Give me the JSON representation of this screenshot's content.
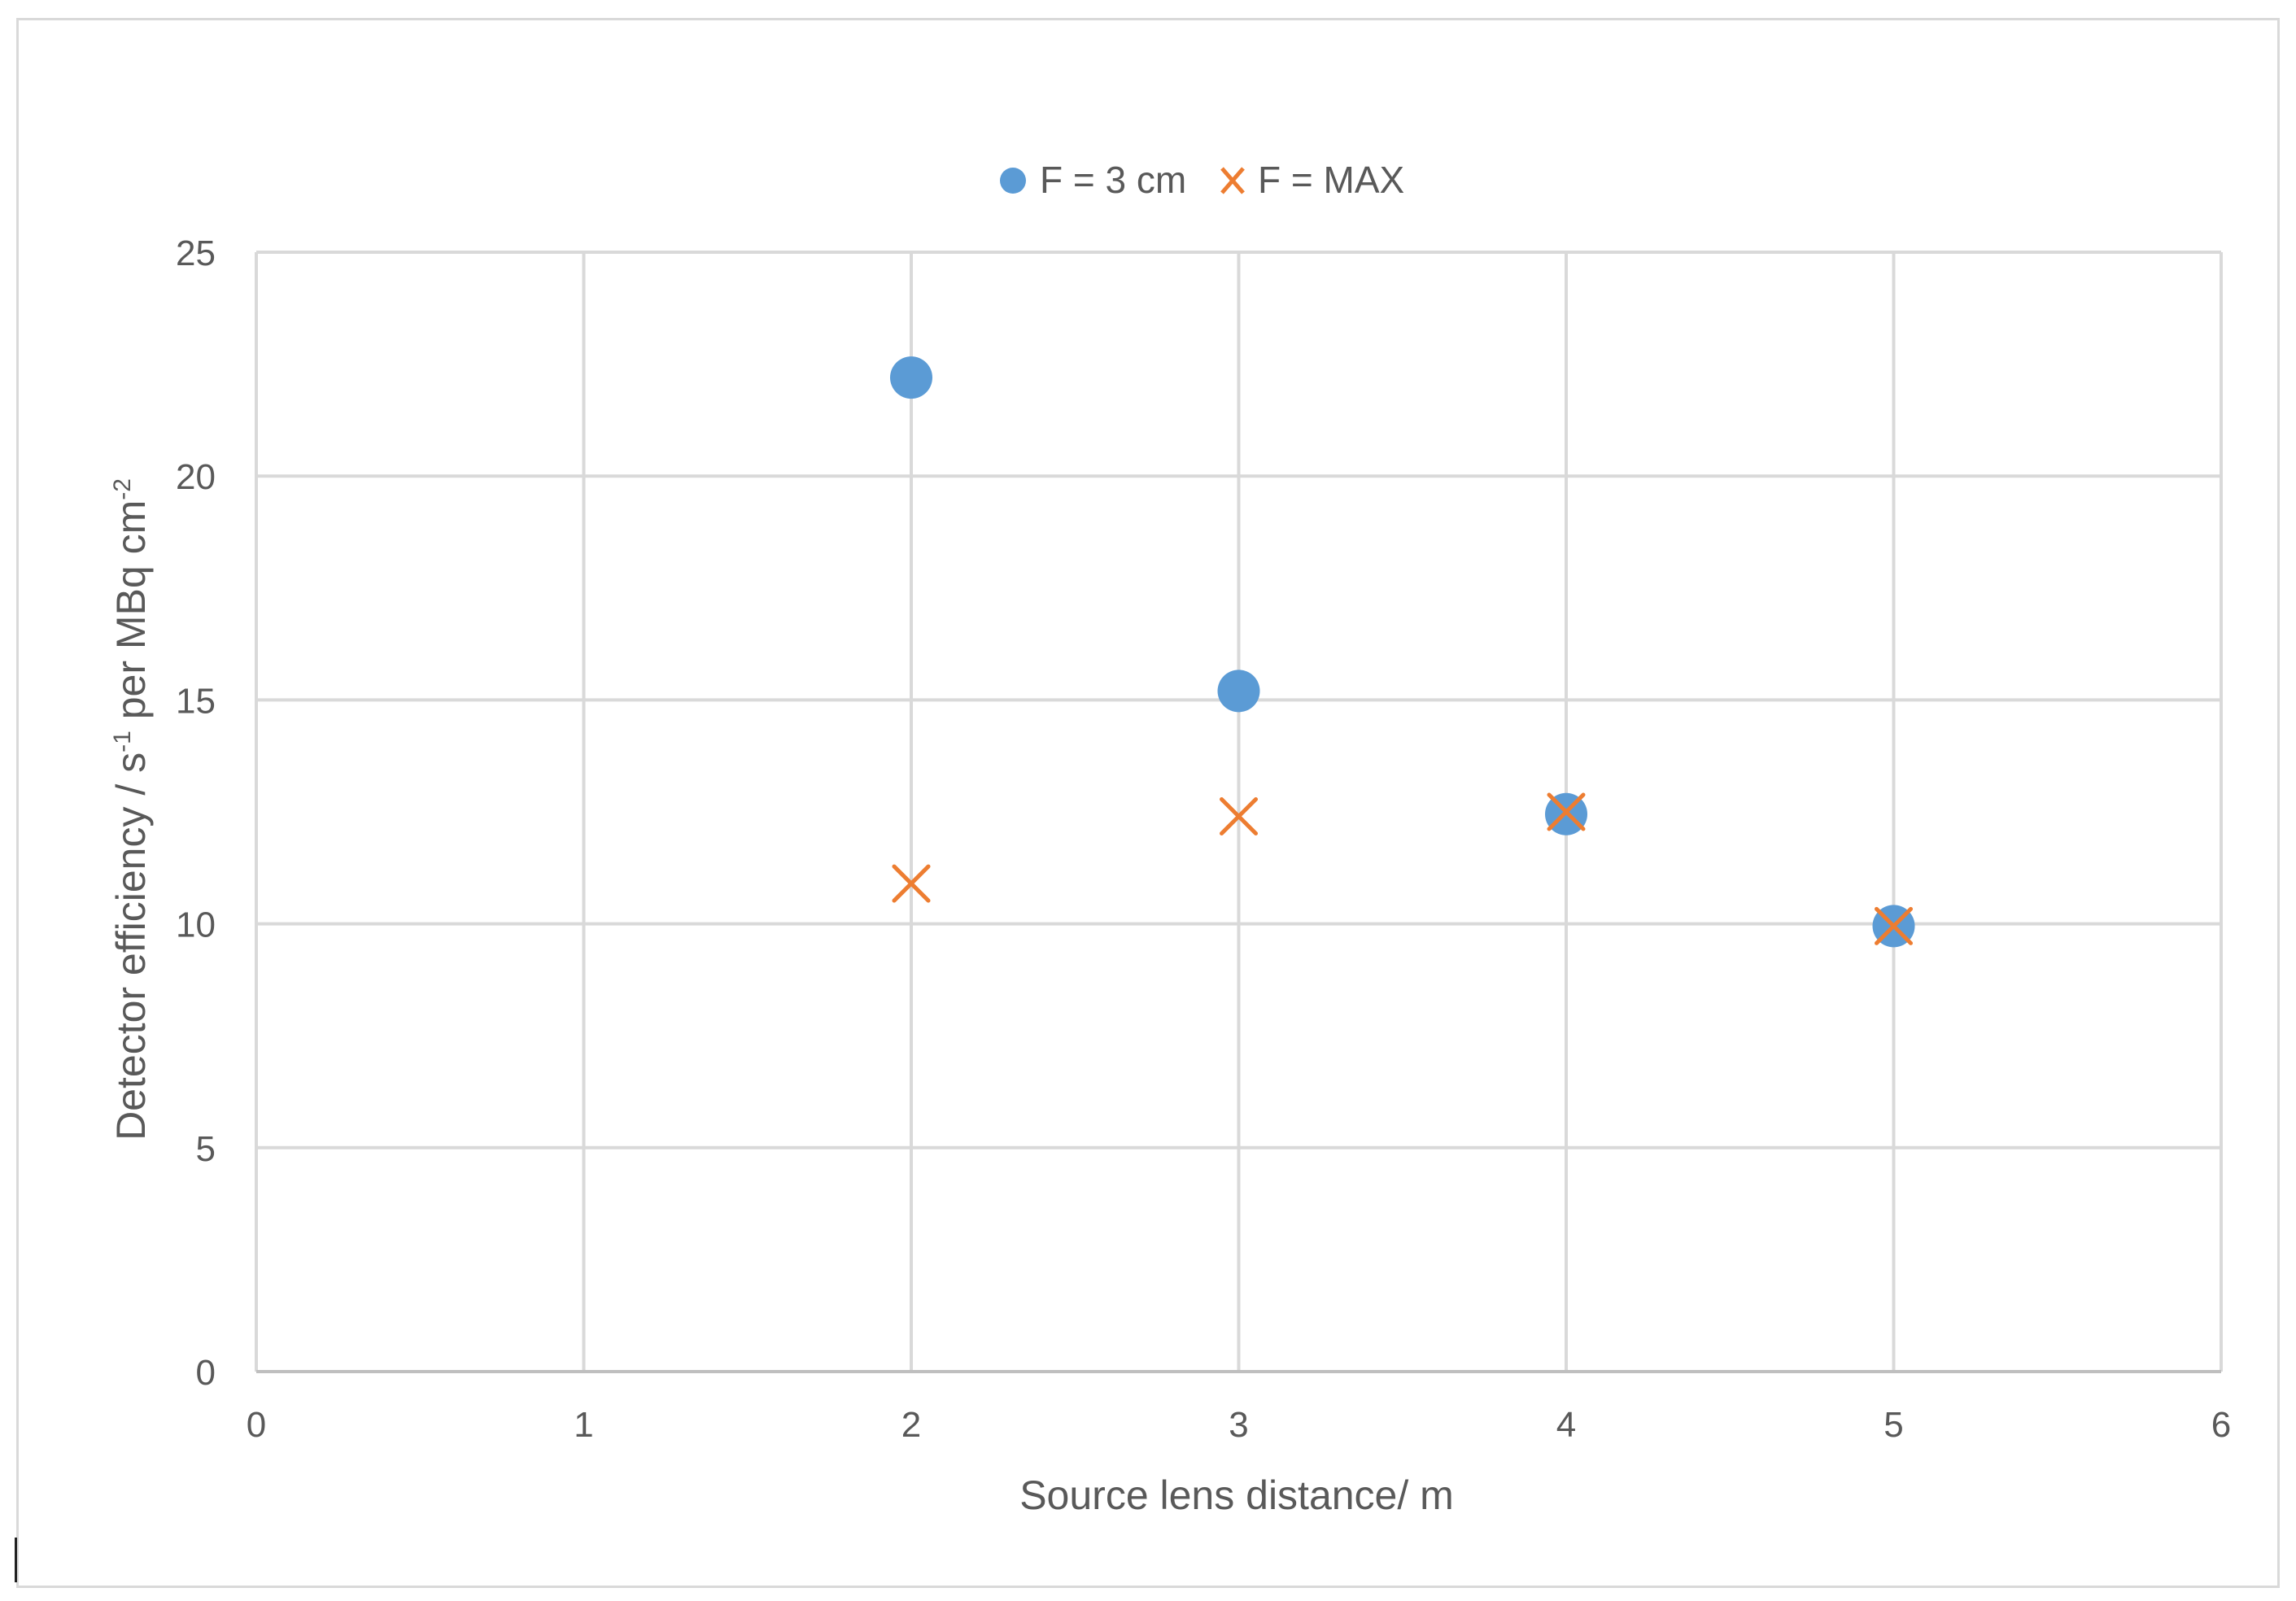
{
  "chart_data": {
    "type": "scatter",
    "title": "",
    "xlabel": "Source lens distance/ m",
    "ylabel_main": "Detector efficiency / s",
    "ylabel_sup1": "-1",
    "ylabel_mid": " per MBq cm",
    "ylabel_sup2": "-2",
    "xlim": [
      0,
      6
    ],
    "ylim": [
      0,
      25
    ],
    "xticks": [
      "0",
      "1",
      "2",
      "3",
      "4",
      "5",
      "6"
    ],
    "yticks": [
      "0",
      "5",
      "10",
      "15",
      "20",
      "25"
    ],
    "xtick_values": [
      0,
      1,
      2,
      3,
      4,
      5,
      6
    ],
    "ytick_values": [
      0,
      5,
      10,
      15,
      20,
      25
    ],
    "grid": true,
    "legend_position": "top-center",
    "series": [
      {
        "name": "F = 3 cm",
        "marker": "circle",
        "color": "#5b9bd5",
        "points": [
          {
            "x": 2,
            "y": 22.2
          },
          {
            "x": 3,
            "y": 15.2
          },
          {
            "x": 4,
            "y": 12.45
          },
          {
            "x": 5,
            "y": 9.95
          }
        ]
      },
      {
        "name": "F = MAX",
        "marker": "cross",
        "color": "#ed7d31",
        "points": [
          {
            "x": 2,
            "y": 10.9
          },
          {
            "x": 3,
            "y": 12.4
          },
          {
            "x": 4,
            "y": 12.5
          },
          {
            "x": 5,
            "y": 9.95
          }
        ]
      }
    ]
  }
}
